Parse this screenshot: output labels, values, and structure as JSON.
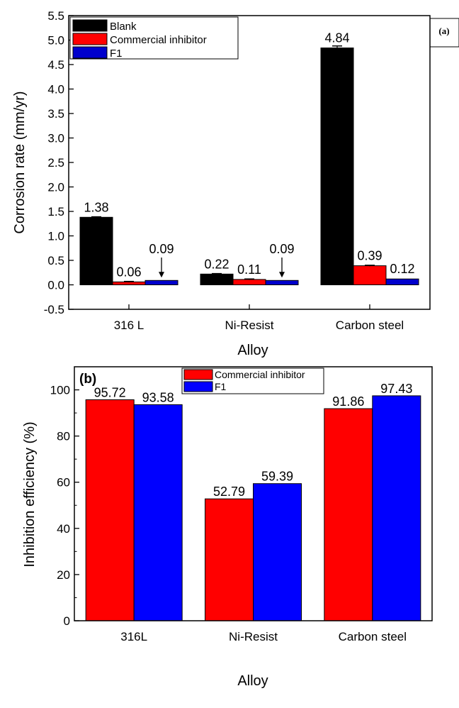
{
  "chart_data": [
    {
      "type": "bar",
      "panel_label": "(a)",
      "xlabel": "Alloy",
      "ylabel": "Corrosion rate (mm/yr)",
      "categories": [
        "316 L",
        "Ni-Resist",
        "Carbon steel"
      ],
      "ylim": [
        -0.5,
        5.5
      ],
      "yticks": [
        -0.5,
        0.0,
        0.5,
        1.0,
        1.5,
        2.0,
        2.5,
        3.0,
        3.5,
        4.0,
        4.5,
        5.0,
        5.5
      ],
      "series": [
        {
          "name": "Blank",
          "color": "#000000",
          "values": [
            1.38,
            0.22,
            4.84
          ],
          "errors": [
            0.01,
            0.01,
            0.04
          ],
          "labels": [
            "1.38",
            "0.22",
            "4.84"
          ]
        },
        {
          "name": "Commercial inhibitor",
          "color": "#ff0000",
          "values": [
            0.06,
            0.11,
            0.39
          ],
          "errors": [
            0.01,
            0.01,
            0.01
          ],
          "labels": [
            "0.06",
            "0.11",
            "0.39"
          ]
        },
        {
          "name": "F1",
          "color": "#0000cc",
          "values": [
            0.09,
            0.09,
            0.12
          ],
          "errors": [
            0.0,
            0.0,
            0.0
          ],
          "labels": [
            "0.09",
            "0.09",
            "0.12"
          ]
        }
      ],
      "annotations": [
        {
          "type": "arrow",
          "category": "316 L",
          "series": "F1",
          "text": "0.09"
        },
        {
          "type": "arrow",
          "category": "Ni-Resist",
          "series": "F1",
          "text": "0.09"
        }
      ],
      "legend": "top-left"
    },
    {
      "type": "bar",
      "panel_label": "(b)",
      "xlabel": "Alloy",
      "ylabel": "Inhibition efficiency (%)",
      "categories": [
        "316L",
        "Ni-Resist",
        "Carbon steel"
      ],
      "ylim": [
        0,
        110
      ],
      "yticks": [
        0,
        20,
        40,
        60,
        80,
        100
      ],
      "series": [
        {
          "name": "Commercial inhibitor",
          "color": "#ff0000",
          "values": [
            95.72,
            52.79,
            91.86
          ],
          "labels": [
            "95.72",
            "52.79",
            "91.86"
          ]
        },
        {
          "name": "F1",
          "color": "#0000ff",
          "values": [
            93.58,
            59.39,
            97.43
          ],
          "labels": [
            "93.58",
            "59.39",
            "97.43"
          ]
        }
      ],
      "legend": "top-center"
    }
  ]
}
